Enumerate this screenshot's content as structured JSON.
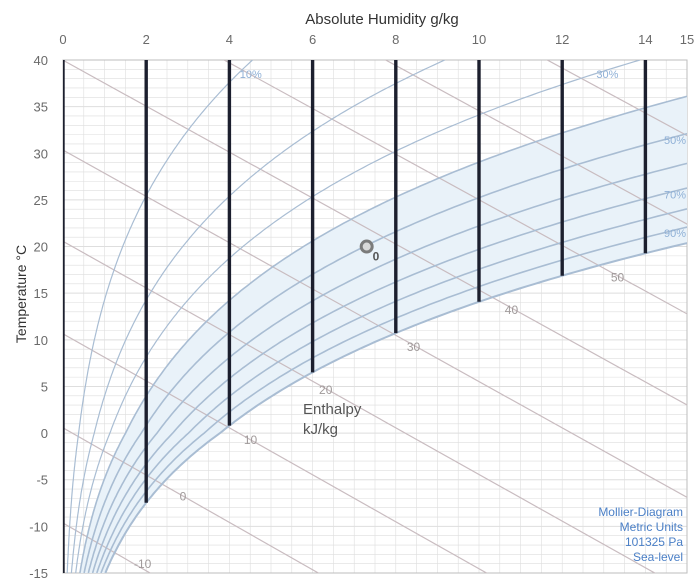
{
  "chart_data": {
    "type": "line",
    "title": "Absolute Humidity g/kg",
    "xlabel": "Absolute Humidity g/kg",
    "ylabel": "Temperature °C",
    "xlim": [
      0,
      15
    ],
    "ylim": [
      -15,
      40
    ],
    "x_ticks": [
      "0",
      "2",
      "4",
      "6",
      "8",
      "10",
      "12",
      "14",
      "15"
    ],
    "x_tick_values": [
      0,
      2,
      4,
      6,
      8,
      10,
      12,
      14,
      15
    ],
    "y_ticks": [
      "40",
      "35",
      "30",
      "25",
      "20",
      "15",
      "10",
      "5",
      "0",
      "-5",
      "-10",
      "-15"
    ],
    "y_tick_values": [
      40,
      35,
      30,
      25,
      20,
      15,
      10,
      5,
      0,
      -5,
      -10,
      -15
    ],
    "grid": true,
    "pressure_pa": 101325,
    "relative_humidity_curves": [
      {
        "rh": 10,
        "label": "10%"
      },
      {
        "rh": 20,
        "label": ""
      },
      {
        "rh": 30,
        "label": "30%"
      },
      {
        "rh": 40,
        "label": ""
      },
      {
        "rh": 50,
        "label": "50%"
      },
      {
        "rh": 60,
        "label": ""
      },
      {
        "rh": 70,
        "label": "70%"
      },
      {
        "rh": 80,
        "label": ""
      },
      {
        "rh": 90,
        "label": "90%"
      },
      {
        "rh": 100,
        "label": ""
      }
    ],
    "enthalpy_lines": [
      {
        "h": -10,
        "label": "-10"
      },
      {
        "h": 0,
        "label": "0"
      },
      {
        "h": 10,
        "label": "10"
      },
      {
        "h": 20,
        "label": "20"
      },
      {
        "h": 30,
        "label": "30"
      },
      {
        "h": 40,
        "label": "40"
      },
      {
        "h": 50,
        "label": "50"
      },
      {
        "h": 60,
        "label": ""
      },
      {
        "h": 70,
        "label": ""
      }
    ],
    "enthalpy_title": [
      "Enthalpy",
      "kJ/kg"
    ],
    "vertical_lines_x": [
      0,
      2,
      4,
      6,
      8,
      10,
      12,
      14
    ],
    "point": {
      "x": 7.3,
      "y": 20,
      "label": "0"
    },
    "info_box": [
      "Mollier-Diagram",
      "Metric Units",
      "101325 Pa",
      "Sea-level"
    ],
    "colors": {
      "rh_curve": "#a9bdd3",
      "saturation_fill": "#e9f2f9",
      "enthalpy_line": "#c9bcc0",
      "vertical_line": "#1c1f2e",
      "grid": "#dedede",
      "point": "#7b7b7b"
    }
  }
}
